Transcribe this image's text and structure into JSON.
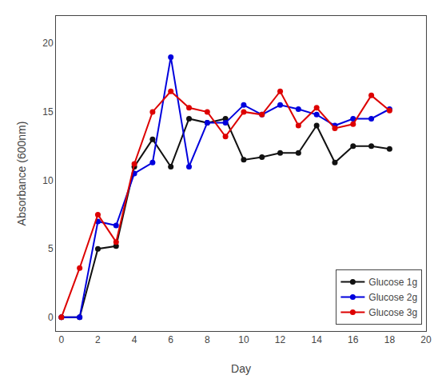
{
  "chart_data": {
    "type": "line",
    "x_label": "Day",
    "y_label": "Absorbance (600nm)",
    "marker": "circle",
    "series": [
      {
        "name": "Glucose 1g",
        "color": "#111111",
        "x": [
          0,
          1,
          2,
          3,
          4,
          5,
          6,
          7,
          8,
          9,
          10,
          11,
          12,
          13,
          14,
          15,
          16,
          17,
          18
        ],
        "values": [
          0,
          0,
          5.0,
          5.2,
          11.0,
          13.0,
          11.0,
          14.5,
          14.2,
          14.5,
          11.5,
          11.7,
          12.0,
          12.0,
          14.0,
          11.3,
          12.5,
          12.5,
          12.3
        ]
      },
      {
        "name": "Glucose 2g",
        "color": "#0000dd",
        "x": [
          0,
          1,
          2,
          3,
          4,
          5,
          6,
          7,
          8,
          9,
          10,
          11,
          12,
          13,
          14,
          15,
          16,
          17,
          18
        ],
        "values": [
          0,
          0,
          7.0,
          6.7,
          10.5,
          11.3,
          19.0,
          11.0,
          14.2,
          14.2,
          15.5,
          14.8,
          15.5,
          15.2,
          14.8,
          14.0,
          14.5,
          14.5,
          15.2
        ]
      },
      {
        "name": "Glucose 3g",
        "color": "#dd0000",
        "x": [
          0,
          1,
          2,
          3,
          4,
          5,
          6,
          7,
          8,
          9,
          10,
          11,
          12,
          13,
          14,
          15,
          16,
          17,
          18
        ],
        "values": [
          0,
          3.6,
          7.5,
          5.5,
          11.2,
          15.0,
          16.5,
          15.3,
          15.0,
          13.2,
          15.0,
          14.8,
          16.5,
          14.0,
          15.3,
          13.8,
          14.1,
          16.2,
          15.1
        ]
      }
    ],
    "xlim": [
      -0.3,
      20
    ],
    "ylim": [
      -1,
      22
    ],
    "xticks": [
      0,
      2,
      4,
      6,
      8,
      10,
      12,
      14,
      16,
      18,
      20
    ],
    "yticks": [
      0,
      5,
      10,
      15,
      20
    ],
    "legend": "lower right",
    "grid": false
  }
}
